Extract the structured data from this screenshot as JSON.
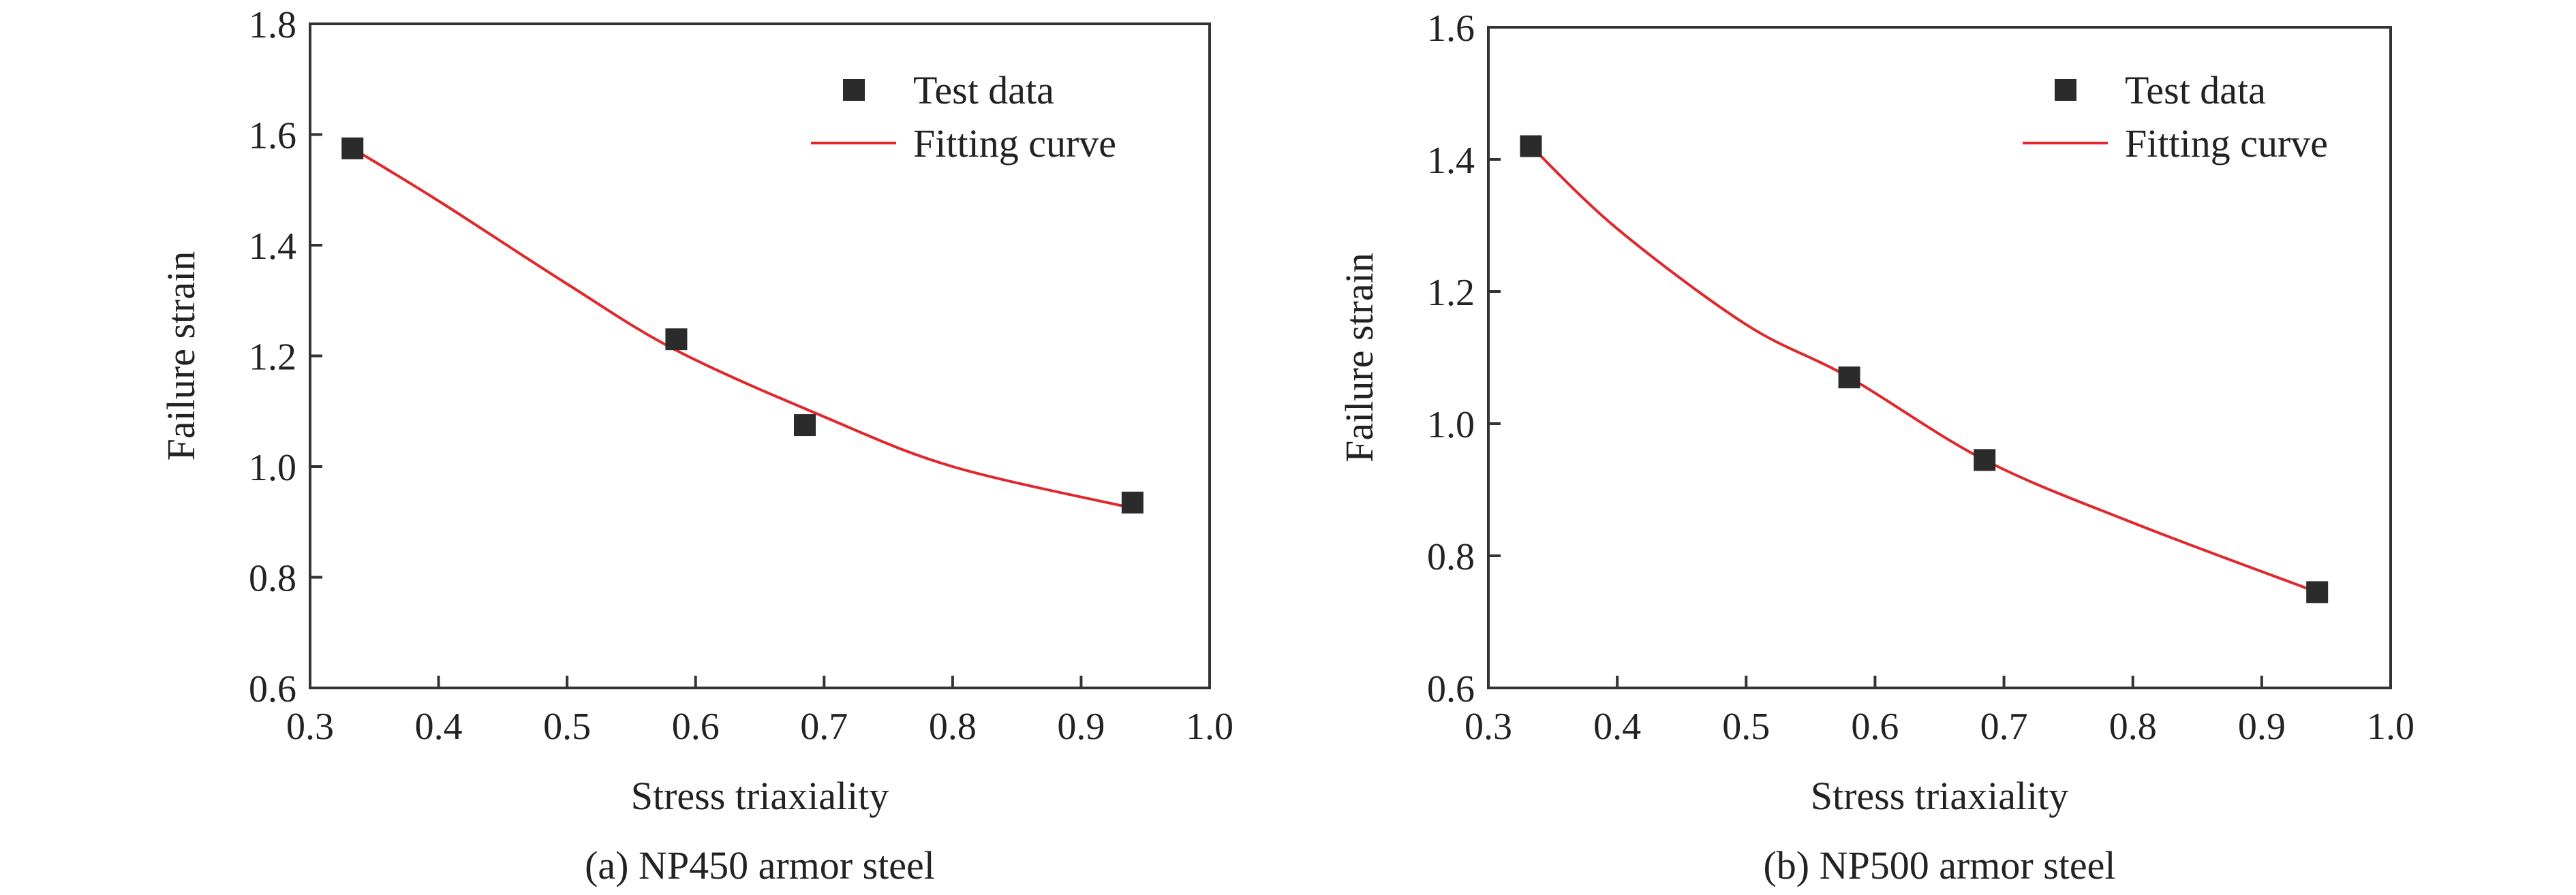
{
  "colors": {
    "axis": "#333333",
    "marker": "#2b2b2b",
    "curve": "#e0282c"
  },
  "chart_data": [
    {
      "type": "scatter",
      "caption": "(a) NP450 armor steel",
      "xlabel": "Stress triaxiality",
      "ylabel": "Failure strain",
      "xlim": [
        0.3,
        1.0
      ],
      "ylim": [
        0.6,
        1.8
      ],
      "xticks": [
        "0.3",
        "0.4",
        "0.5",
        "0.6",
        "0.7",
        "0.8",
        "0.9",
        "1.0"
      ],
      "yticks": [
        "0.6",
        "0.8",
        "1.0",
        "1.2",
        "1.4",
        "1.6",
        "1.8"
      ],
      "legend_position": "top-right",
      "grid": false,
      "series": [
        {
          "name": "Test data",
          "kind": "markers",
          "x": [
            0.333,
            0.585,
            0.685,
            0.94
          ],
          "y": [
            1.575,
            1.23,
            1.075,
            0.935
          ]
        },
        {
          "name": "Fitting curve",
          "kind": "line",
          "x": [
            0.333,
            0.4,
            0.5,
            0.585,
            0.7,
            0.8,
            0.94
          ],
          "y": [
            1.575,
            1.48,
            1.33,
            1.21,
            1.09,
            1.0,
            0.925
          ]
        }
      ]
    },
    {
      "type": "scatter",
      "caption": "(b) NP500 armor steel",
      "xlabel": "Stress triaxiality",
      "ylabel": "Failure strain",
      "xlim": [
        0.3,
        1.0
      ],
      "ylim": [
        0.6,
        1.6
      ],
      "xticks": [
        "0.3",
        "0.4",
        "0.5",
        "0.6",
        "0.7",
        "0.8",
        "0.9",
        "1.0"
      ],
      "yticks": [
        "0.6",
        "0.8",
        "1.0",
        "1.2",
        "1.4",
        "1.6"
      ],
      "legend_position": "top-right",
      "grid": false,
      "series": [
        {
          "name": "Test data",
          "kind": "markers",
          "x": [
            0.333,
            0.58,
            0.685,
            0.943
          ],
          "y": [
            1.42,
            1.07,
            0.945,
            0.745
          ]
        },
        {
          "name": "Fitting curve",
          "kind": "line",
          "x": [
            0.333,
            0.4,
            0.5,
            0.58,
            0.685,
            0.8,
            0.943
          ],
          "y": [
            1.42,
            1.295,
            1.15,
            1.07,
            0.945,
            0.85,
            0.745
          ]
        }
      ]
    }
  ]
}
